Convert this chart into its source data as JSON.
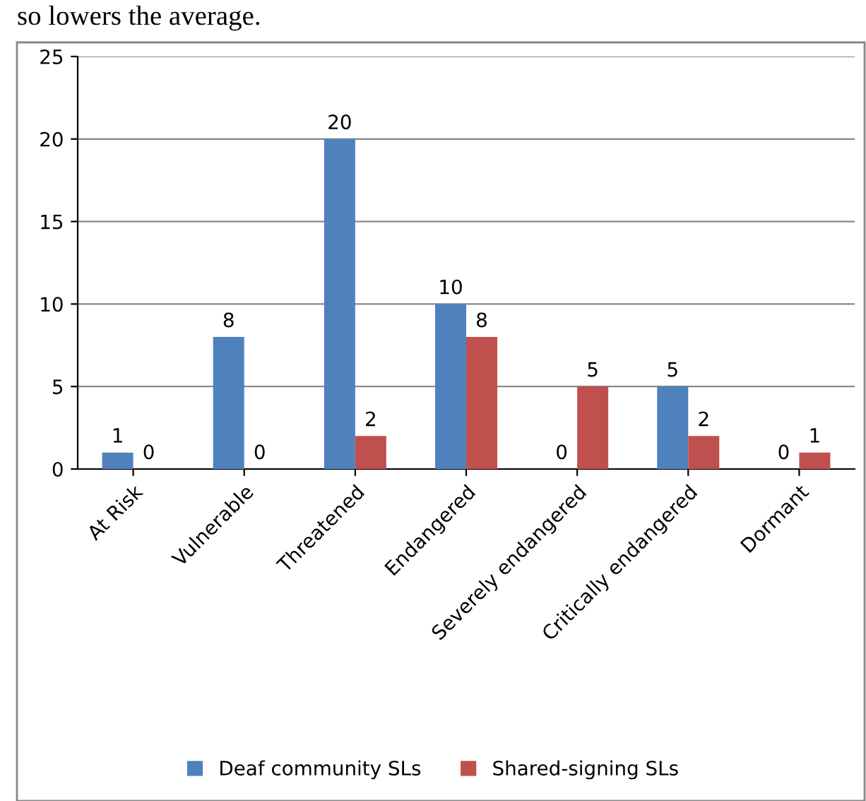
{
  "chart_data": {
    "type": "bar",
    "annotations": [
      "so lowers the average."
    ],
    "categories": [
      "At Risk",
      "Vulnerable",
      "Threatened",
      "Endangered",
      "Severely endangered",
      "Critically endangered",
      "Dormant"
    ],
    "series": [
      {
        "name": "Deaf community SLs",
        "color": "#4f81bd",
        "values": [
          1,
          8,
          20,
          10,
          0,
          5,
          0
        ]
      },
      {
        "name": "Shared-signing SLs",
        "color": "#c0504d",
        "values": [
          0,
          0,
          2,
          8,
          5,
          2,
          1
        ]
      }
    ],
    "ylim": [
      0,
      25
    ],
    "yticks": [
      0,
      5,
      10,
      15,
      20,
      25
    ],
    "grid": "y",
    "legend": "bottom",
    "data_labels": true
  }
}
